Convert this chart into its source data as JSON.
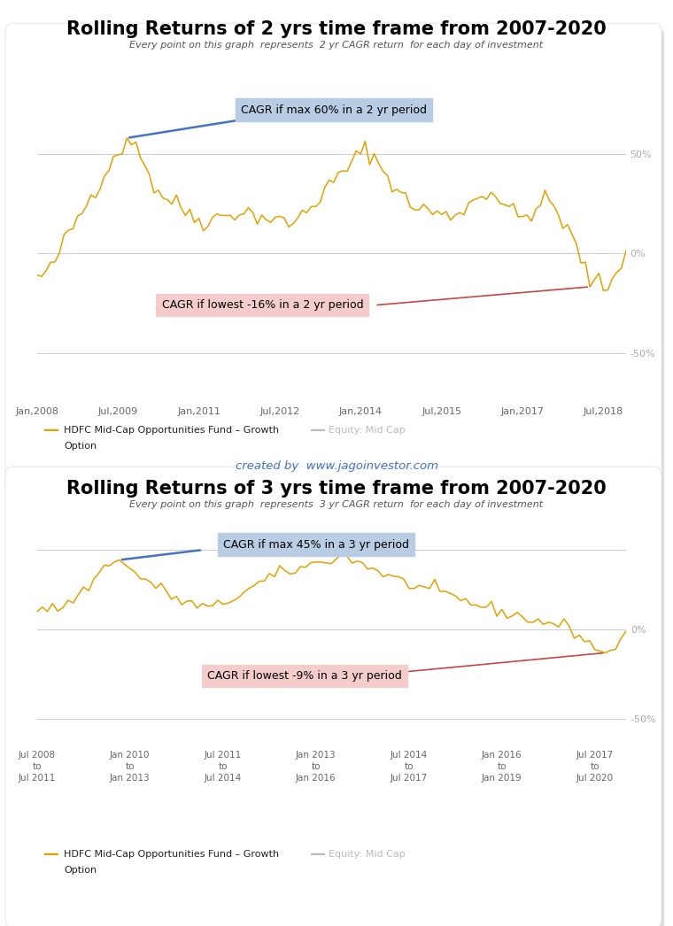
{
  "chart1": {
    "title": "Rolling Returns of 2 yrs time frame from 2007-2020",
    "subtitle": "Every point on this graph  represents  2 yr CAGR return  for each day of investment",
    "max_label": "CAGR if max 60% in a 2 yr period",
    "min_label": "CAGR if lowest -16% in a 2 yr period",
    "ytick_labels": [
      "-50%",
      "0%",
      "50%"
    ],
    "ytick_vals": [
      -50,
      0,
      50
    ],
    "hlines": [
      -50,
      0,
      50
    ],
    "xtick_labels": [
      "Jan,2008",
      "Jul,2009",
      "Jan,2011",
      "Jul,2012",
      "Jan,2014",
      "Jul,2015",
      "Jan,2017",
      "Jul,2018"
    ],
    "xtick_positions": [
      0,
      18,
      36,
      54,
      72,
      90,
      108,
      126
    ],
    "ylim": [
      -75,
      90
    ],
    "n": 132
  },
  "chart2": {
    "title": "Rolling Returns of 3 yrs time frame from 2007-2020",
    "subtitle": "Every point on this graph  represents  3 yr CAGR return  for each day of investment",
    "max_label": "CAGR if max 45% in a 3 yr period",
    "min_label": "CAGR if lowest -9% in a 3 yr period",
    "ytick_labels": [
      "-50%",
      "0%"
    ],
    "ytick_vals": [
      -50,
      0
    ],
    "hlines": [
      -50,
      0,
      45
    ],
    "xtick_labels": [
      "Jul 2008\nto\nJul 2011",
      "Jan 2010\nto\nJan 2013",
      "Jul 2011\nto\nJul 2014",
      "Jan 2013\nto\nJan 2016",
      "Jul 2014\nto\nJul 2017",
      "Jan 2016\nto\nJan 2019",
      "Jul 2017\nto\nJul 2020"
    ],
    "xtick_positions": [
      0,
      18,
      36,
      54,
      72,
      90,
      108
    ],
    "ylim": [
      -65,
      60
    ],
    "n": 115
  },
  "line_color": "#E8A000",
  "watermark": "created by  www.jagoinvestor.com",
  "legend_fund": "HDFC Mid-Cap Opportunities Fund – Growth\nOption",
  "legend_equity": "Equity: Mid Cap",
  "box_blue_fc": "#B8CCE4",
  "box_pink_fc": "#F4CCCC",
  "arrow_blue": "#4472C4",
  "arrow_red": "#CC4444",
  "chart_bg": "#FFFFFF",
  "hline_color": "#CCCCCC",
  "ytick_color": "#AAAAAA",
  "xtick_color": "#666666"
}
